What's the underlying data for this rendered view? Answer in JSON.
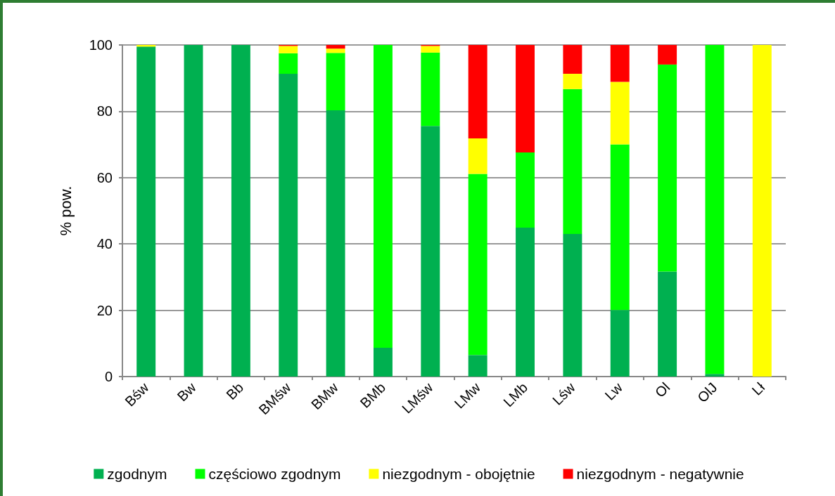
{
  "chart_data": {
    "type": "bar",
    "stacked": true,
    "ylabel": "% pow.",
    "categories": [
      "Bśw",
      "Bw",
      "Bb",
      "BMśw",
      "BMw",
      "BMb",
      "LMśw",
      "LMw",
      "LMb",
      "Lśw",
      "Lw",
      "Ol",
      "OlJ",
      "Lł"
    ],
    "series": [
      {
        "name": "zgodnym",
        "color": "#00b050",
        "values": [
          99.5,
          100,
          100,
          91.3,
          80.3,
          8.7,
          75.6,
          6.5,
          44.9,
          43.0,
          20.1,
          31.7,
          0.8,
          0
        ]
      },
      {
        "name": "częściowo zgodnym",
        "color": "#00ff00",
        "values": [
          0,
          0,
          0,
          6.2,
          17.3,
          91.3,
          22.1,
          54.6,
          22.7,
          43.7,
          49.9,
          62.4,
          99.2,
          0
        ]
      },
      {
        "name": "niezgodnym - obojętnie",
        "color": "#ffff00",
        "values": [
          0.5,
          0,
          0,
          2.2,
          1.3,
          0,
          2.0,
          10.7,
          0,
          4.6,
          18.9,
          0,
          0,
          100
        ]
      },
      {
        "name": "niezgodnym - negatywnie",
        "color": "#ff0000",
        "values": [
          0,
          0,
          0,
          0.3,
          1.1,
          0,
          0.3,
          28.2,
          32.4,
          8.7,
          11.1,
          5.9,
          0,
          0
        ]
      }
    ],
    "ylim": [
      0,
      100
    ],
    "yticks": [
      0,
      20,
      40,
      60,
      80,
      100
    ],
    "grid": true,
    "legend": "bottom"
  }
}
